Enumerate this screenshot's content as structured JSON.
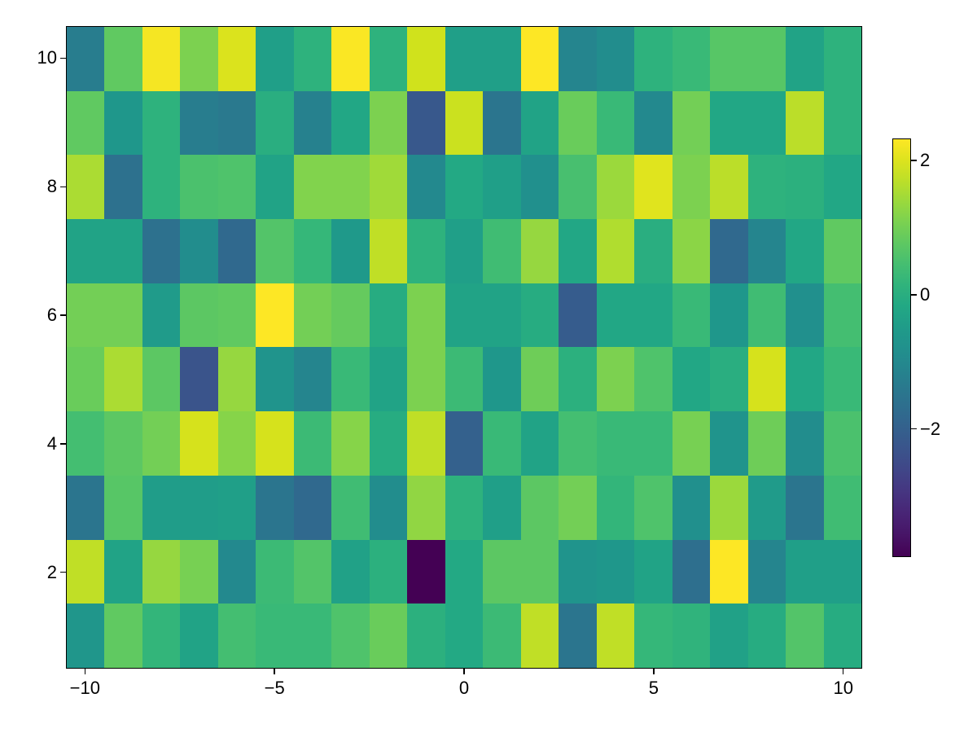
{
  "chart_data": {
    "type": "heatmap",
    "title": "",
    "xlabel": "",
    "ylabel": "",
    "x": [
      -10,
      -9,
      -8,
      -7,
      -6,
      -5,
      -4,
      -3,
      -2,
      -1,
      0,
      1,
      2,
      3,
      4,
      5,
      6,
      7,
      8,
      9,
      10
    ],
    "y": [
      1,
      2,
      3,
      4,
      5,
      6,
      7,
      8,
      9,
      10
    ],
    "xlim": [
      -10.5,
      10.5
    ],
    "ylim": [
      0.5,
      10.5
    ],
    "colormap": "viridis",
    "color_range": [
      -3.91,
      2.33
    ],
    "grid": false,
    "values_by_row_top_to_bottom": [
      {
        "y": 10,
        "values": [
          -1.3,
          0.8,
          2.25,
          1.1,
          2.0,
          -0.4,
          0.1,
          2.3,
          0.1,
          1.9,
          -0.4,
          -0.4,
          2.33,
          -1.1,
          -0.9,
          0.1,
          0.3,
          0.7,
          0.7,
          -0.3,
          0.1
        ]
      },
      {
        "y": 9,
        "values": [
          0.8,
          -0.6,
          0.1,
          -1.3,
          -1.4,
          0.0,
          -1.2,
          -0.2,
          1.1,
          -2.2,
          1.85,
          -1.5,
          -0.3,
          0.9,
          0.3,
          -1.0,
          1.0,
          -0.2,
          -0.2,
          1.7,
          0.1
        ]
      },
      {
        "y": 8,
        "values": [
          1.55,
          -1.6,
          0.1,
          0.55,
          0.6,
          -0.3,
          1.15,
          1.15,
          1.45,
          -1.0,
          -0.15,
          -0.4,
          -0.8,
          0.5,
          1.4,
          2.05,
          1.1,
          1.7,
          0.1,
          0.05,
          -0.2
        ]
      },
      {
        "y": 7,
        "values": [
          -0.3,
          -0.3,
          -1.6,
          -0.9,
          -1.8,
          0.65,
          0.25,
          -0.55,
          1.75,
          0.1,
          -0.4,
          0.4,
          1.35,
          -0.2,
          1.6,
          0.0,
          1.25,
          -1.8,
          -1.1,
          -0.2,
          0.8
        ]
      },
      {
        "y": 6,
        "values": [
          1.0,
          1.0,
          -0.5,
          0.75,
          0.8,
          2.33,
          1.0,
          0.85,
          -0.05,
          1.1,
          -0.3,
          -0.3,
          -0.05,
          -2.1,
          -0.2,
          -0.2,
          0.3,
          -0.6,
          0.4,
          -0.8,
          0.45
        ]
      },
      {
        "y": 5,
        "values": [
          0.9,
          1.55,
          0.75,
          -2.3,
          1.35,
          -0.7,
          -1.1,
          0.3,
          -0.3,
          1.1,
          0.35,
          -0.6,
          0.95,
          0.05,
          1.1,
          0.6,
          -0.2,
          0.0,
          1.95,
          -0.2,
          0.3
        ]
      },
      {
        "y": 4,
        "values": [
          0.45,
          0.75,
          1.0,
          1.95,
          1.2,
          1.95,
          0.35,
          1.2,
          -0.05,
          1.75,
          -2.0,
          0.3,
          -0.3,
          0.45,
          0.3,
          0.3,
          1.05,
          -0.7,
          0.95,
          -0.9,
          0.55
        ]
      },
      {
        "y": 3,
        "values": [
          -1.5,
          0.7,
          -0.45,
          -0.45,
          -0.4,
          -1.5,
          -1.8,
          0.4,
          -0.9,
          1.3,
          0.1,
          -0.4,
          0.75,
          1.0,
          0.2,
          0.6,
          -0.8,
          1.4,
          -0.5,
          -1.5,
          0.4
        ]
      },
      {
        "y": 2,
        "values": [
          1.75,
          -0.3,
          1.35,
          1.05,
          -1.0,
          0.35,
          0.65,
          -0.35,
          0.05,
          -3.91,
          -0.15,
          0.75,
          0.75,
          -0.7,
          -0.6,
          -0.3,
          -1.65,
          2.33,
          -1.1,
          -0.4,
          -0.4
        ]
      },
      {
        "y": 1,
        "values": [
          -0.65,
          0.8,
          0.2,
          -0.3,
          0.45,
          0.3,
          0.3,
          0.6,
          0.9,
          0.05,
          -0.15,
          0.35,
          1.75,
          -1.5,
          1.75,
          0.25,
          0.15,
          -0.35,
          -0.05,
          0.65,
          -0.05
        ]
      }
    ],
    "x_ticks": [
      {
        "value": -10,
        "label": "−10"
      },
      {
        "value": -5,
        "label": "−5"
      },
      {
        "value": 0,
        "label": "0"
      },
      {
        "value": 5,
        "label": "5"
      },
      {
        "value": 10,
        "label": "10"
      }
    ],
    "y_ticks": [
      {
        "value": 2,
        "label": "2"
      },
      {
        "value": 4,
        "label": "4"
      },
      {
        "value": 6,
        "label": "6"
      },
      {
        "value": 8,
        "label": "8"
      },
      {
        "value": 10,
        "label": "10"
      }
    ],
    "colorbar": {
      "position": "right",
      "ticks": [
        {
          "value": 2,
          "label": "2"
        },
        {
          "value": 0,
          "label": "0"
        },
        {
          "value": -2,
          "label": "−2"
        }
      ]
    }
  }
}
